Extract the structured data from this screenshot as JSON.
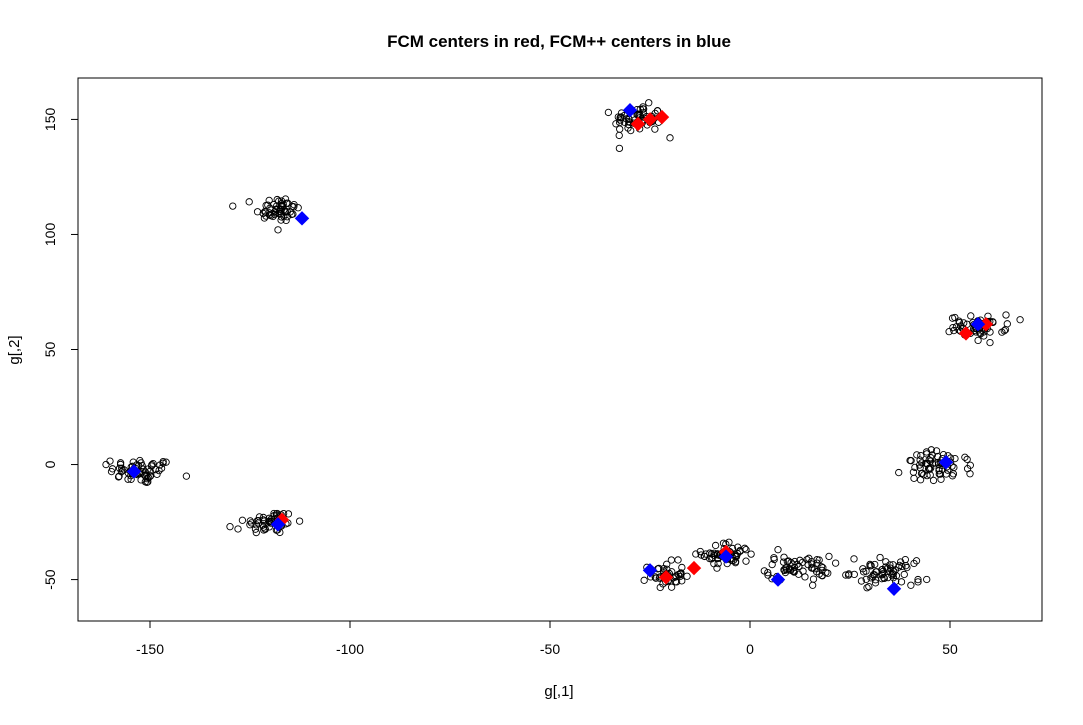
{
  "chart_data": {
    "type": "scatter",
    "title": "FCM centers in red, FCM++ centers in blue",
    "xlabel": "g[,1]",
    "ylabel": "g[,2]",
    "xlim": [
      -168,
      73
    ],
    "ylim": [
      -68,
      168
    ],
    "xticks": [
      -150,
      -100,
      -50,
      0,
      50
    ],
    "yticks": [
      -50,
      0,
      50,
      100,
      150
    ],
    "grid": false,
    "legend": "none",
    "point_style": "open-circle",
    "colors": {
      "fcm": "#ff0000",
      "fcmpp": "#0000ff",
      "points": "#000000"
    },
    "clusters": [
      {
        "center": [
          -152,
          -3
        ],
        "spread": [
          4.0,
          2.8
        ],
        "n": 60,
        "outliers": [
          [
            -161,
            0
          ],
          [
            -160,
            1.5
          ]
        ]
      },
      {
        "center": [
          -118,
          111
        ],
        "spread": [
          2.8,
          2.8
        ],
        "n": 55,
        "outliers": [
          [
            -121,
            108
          ],
          [
            -118,
            102
          ]
        ]
      },
      {
        "center": [
          -120,
          -25
        ],
        "spread": [
          3.2,
          2.6
        ],
        "n": 50,
        "outliers": [
          [
            -130,
            -27
          ],
          [
            -128,
            -28
          ]
        ]
      },
      {
        "center": [
          -28,
          150
        ],
        "spread": [
          3.0,
          3.0
        ],
        "n": 60,
        "outliers": [
          [
            -20,
            142
          ]
        ]
      },
      {
        "center": [
          -21,
          -48
        ],
        "spread": [
          2.2,
          2.8
        ],
        "n": 45,
        "outliers": []
      },
      {
        "center": [
          -6,
          -39
        ],
        "spread": [
          3.0,
          2.6
        ],
        "n": 55,
        "outliers": [
          [
            -1,
            -37
          ],
          [
            -1,
            -42
          ]
        ]
      },
      {
        "center": [
          12,
          -45
        ],
        "spread": [
          4.0,
          2.6
        ],
        "n": 60,
        "outliers": [
          [
            7,
            -37
          ],
          [
            18,
            -46
          ]
        ]
      },
      {
        "center": [
          33,
          -47
        ],
        "spread": [
          4.0,
          2.6
        ],
        "n": 60,
        "outliers": [
          [
            26,
            -41
          ],
          [
            42,
            -50
          ],
          [
            42,
            -51
          ],
          [
            41,
            -43
          ]
        ]
      },
      {
        "center": [
          47,
          -1
        ],
        "spread": [
          4.2,
          3.5
        ],
        "n": 65,
        "outliers": [
          [
            41,
            -6
          ],
          [
            55,
            -4
          ]
        ]
      },
      {
        "center": [
          57,
          60
        ],
        "spread": [
          3.5,
          2.2
        ],
        "n": 55,
        "outliers": [
          [
            64,
            65
          ],
          [
            60,
            53
          ]
        ]
      }
    ],
    "fcm_centers": [
      [
        -117,
        -24
      ],
      [
        -28,
        148
      ],
      [
        -25,
        150
      ],
      [
        -22,
        151
      ],
      [
        -21,
        -49
      ],
      [
        -14,
        -45
      ],
      [
        -6,
        -38
      ],
      [
        54,
        57
      ],
      [
        59,
        61
      ]
    ],
    "fcmpp_centers": [
      [
        -154,
        -3
      ],
      [
        -112,
        107
      ],
      [
        -118,
        -26
      ],
      [
        -30,
        154
      ],
      [
        -25,
        -46
      ],
      [
        -6,
        -40
      ],
      [
        7,
        -50
      ],
      [
        36,
        -54
      ],
      [
        49,
        1
      ],
      [
        57,
        61
      ]
    ]
  }
}
